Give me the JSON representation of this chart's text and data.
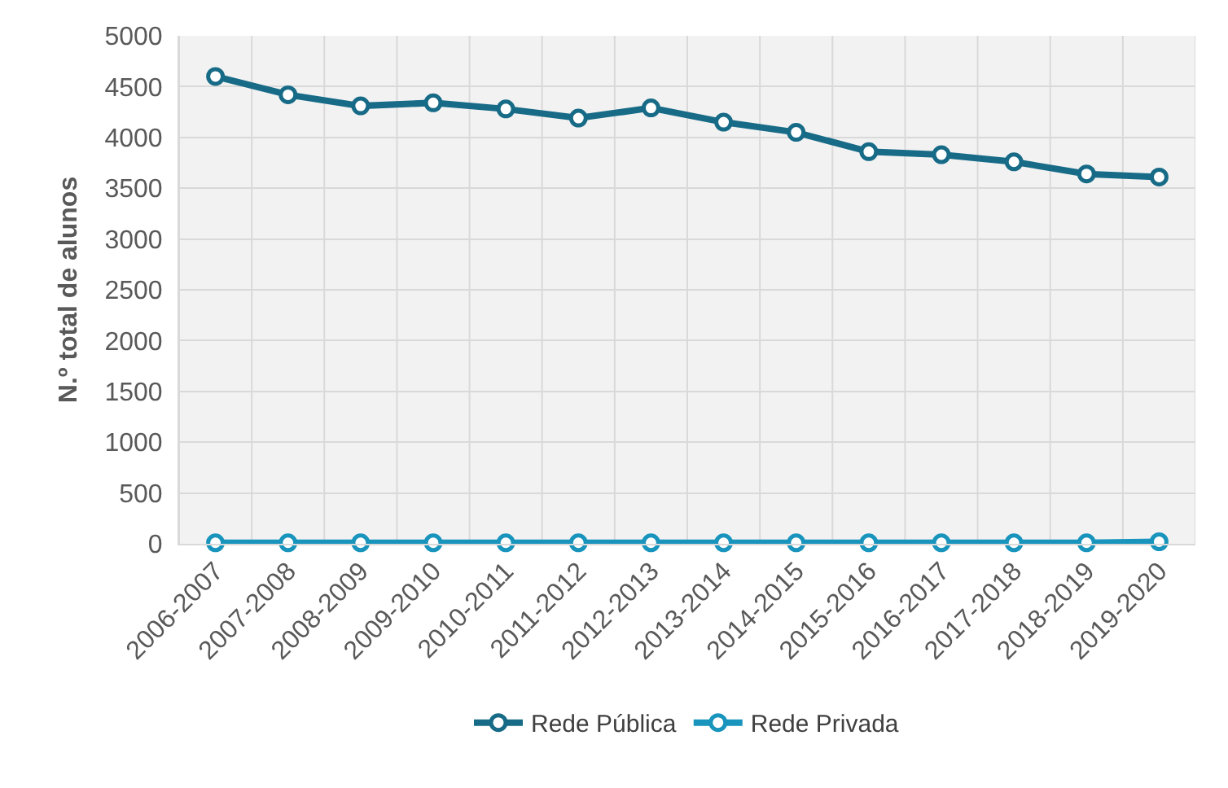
{
  "chart_data": {
    "type": "line",
    "ylabel": "N.º total de alunos",
    "categories": [
      "2006-2007",
      "2007-2008",
      "2008-2009",
      "2009-2010",
      "2010-2011",
      "2011-2012",
      "2012-2013",
      "2013-2014",
      "2014-2015",
      "2015-2016",
      "2016-2017",
      "2017-2018",
      "2018-2019",
      "2019-2020"
    ],
    "series": [
      {
        "name": "Rede Pública",
        "color": "#176b87",
        "values": [
          4600,
          4420,
          4310,
          4340,
          4280,
          4190,
          4290,
          4150,
          4050,
          3860,
          3830,
          3760,
          3640,
          3610
        ]
      },
      {
        "name": "Rede Privada",
        "color": "#1894bd",
        "values": [
          10,
          10,
          10,
          10,
          10,
          10,
          10,
          10,
          10,
          10,
          10,
          10,
          10,
          20
        ]
      }
    ],
    "ylim": [
      0,
      5000
    ],
    "yticks": [
      0,
      500,
      1000,
      1500,
      2000,
      2500,
      3000,
      3500,
      4000,
      4500,
      5000
    ],
    "grid": true,
    "legend": "bottom",
    "marker": "circle",
    "line_style": "solid"
  }
}
